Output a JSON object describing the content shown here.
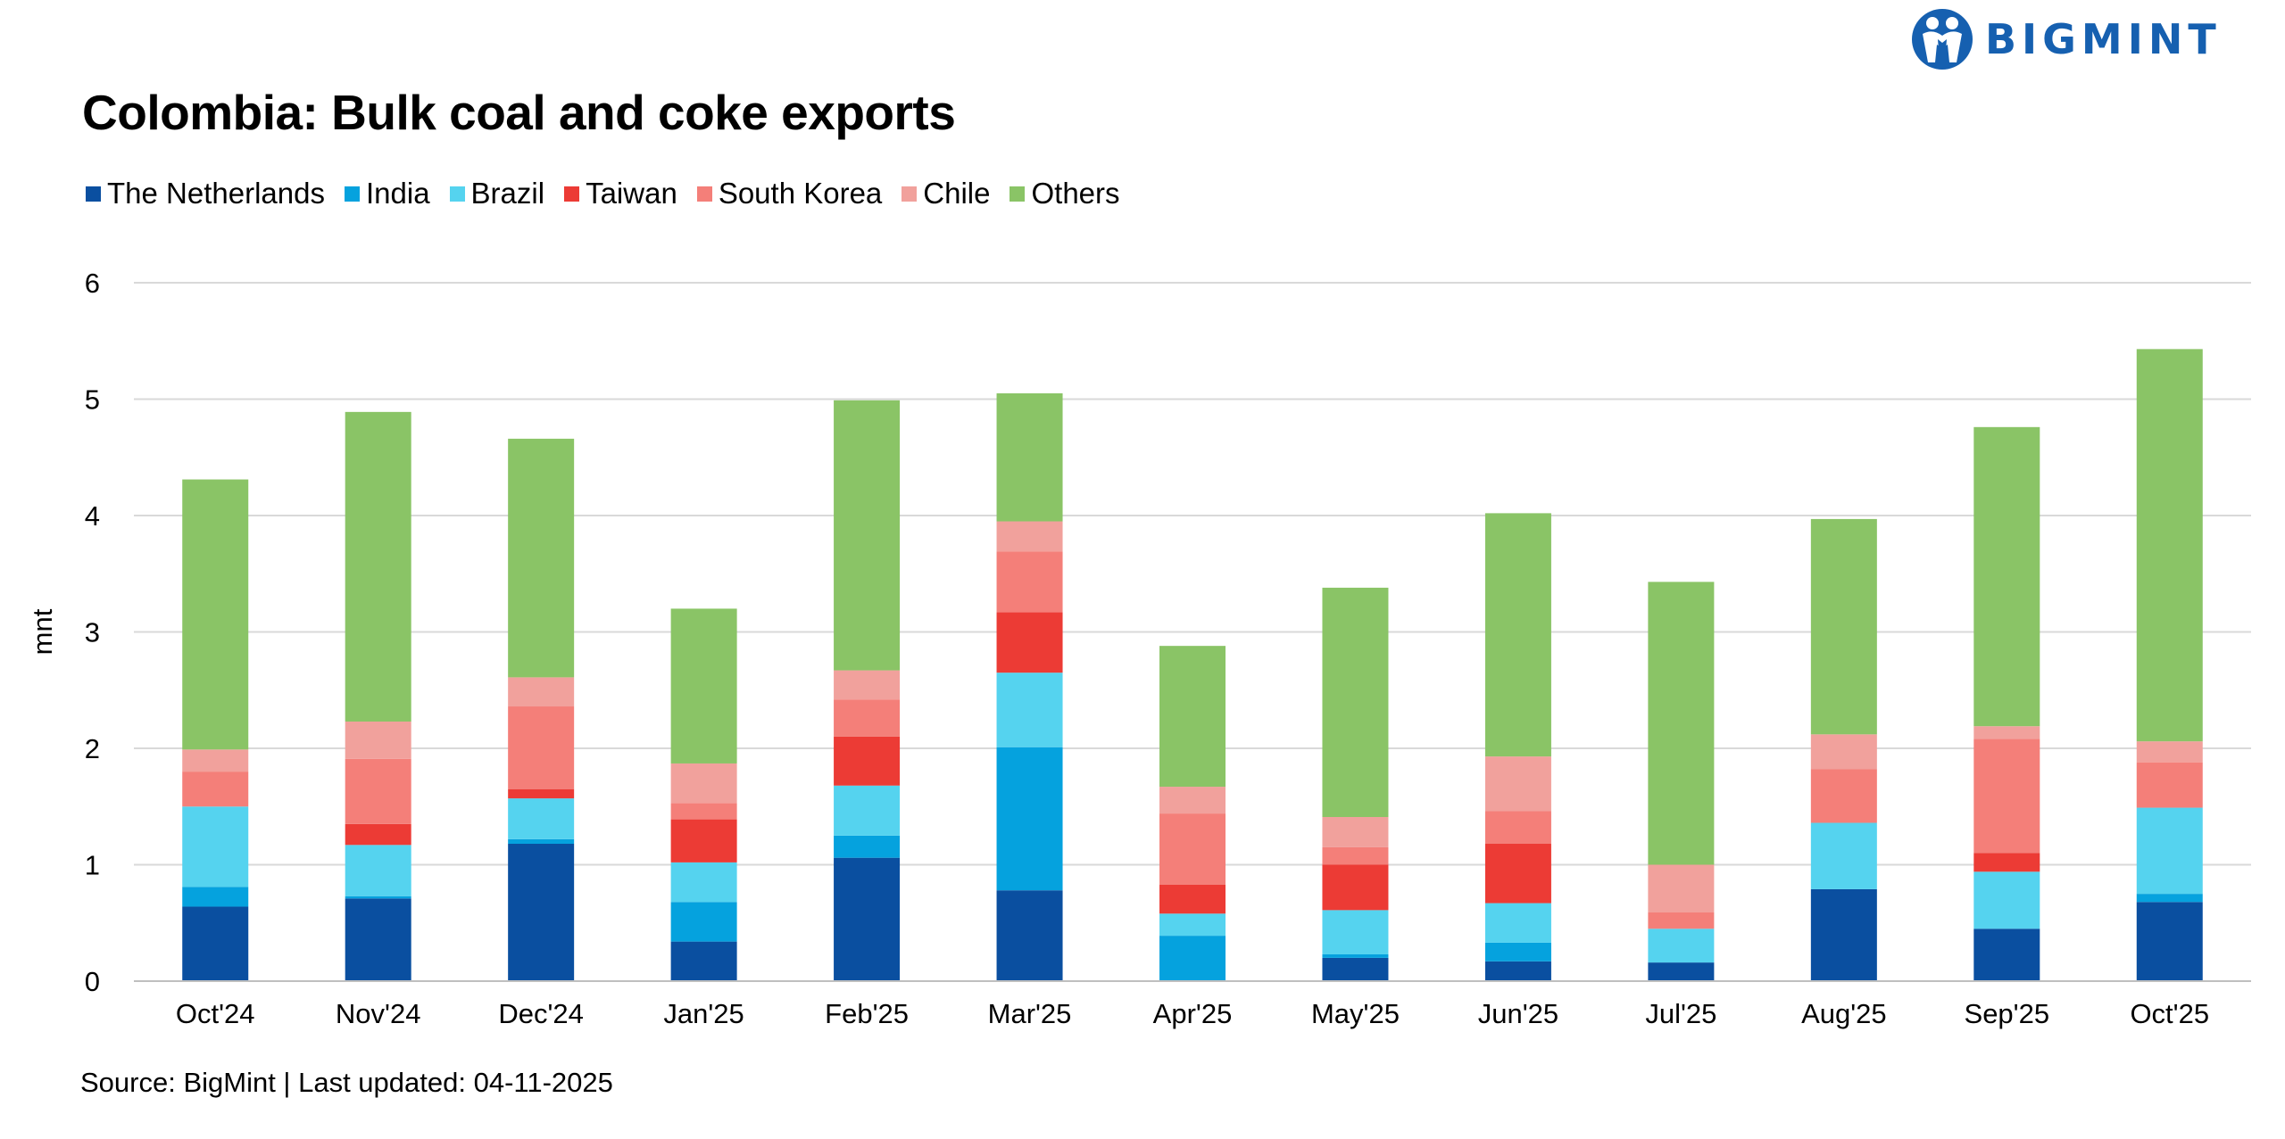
{
  "brand": {
    "name": "BIGMINT",
    "color": "#1660b0"
  },
  "source_text": "Source: BigMint | Last updated: 04-11-2025",
  "chart_data": {
    "type": "bar",
    "stacked": true,
    "title": "Colombia: Bulk coal and coke exports",
    "xlabel": "",
    "ylabel": "mnt",
    "ylim": [
      0,
      6
    ],
    "yticks": [
      0,
      1,
      2,
      3,
      4,
      5,
      6
    ],
    "grid": true,
    "legend_position": "top-left",
    "categories": [
      "Oct'24",
      "Nov'24",
      "Dec'24",
      "Jan'25",
      "Feb'25",
      "Mar'25",
      "Apr'25",
      "May'25",
      "Jun'25",
      "Jul'25",
      "Aug'25",
      "Sep'25",
      "Oct'25"
    ],
    "series": [
      {
        "name": "The Netherlands",
        "color": "#0a4fa0",
        "values": [
          0.64,
          0.71,
          1.18,
          0.34,
          1.06,
          0.78,
          0.0,
          0.2,
          0.17,
          0.16,
          0.79,
          0.45,
          0.68
        ]
      },
      {
        "name": "India",
        "color": "#05a2de",
        "values": [
          0.17,
          0.02,
          0.04,
          0.34,
          0.19,
          1.23,
          0.39,
          0.03,
          0.16,
          0.0,
          0.0,
          0.0,
          0.07
        ]
      },
      {
        "name": "Brazil",
        "color": "#55d3ef",
        "values": [
          0.69,
          0.44,
          0.35,
          0.34,
          0.43,
          0.64,
          0.19,
          0.38,
          0.34,
          0.29,
          0.57,
          0.49,
          0.74
        ]
      },
      {
        "name": "Taiwan",
        "color": "#ec3b35",
        "values": [
          0.0,
          0.18,
          0.08,
          0.37,
          0.42,
          0.52,
          0.25,
          0.39,
          0.51,
          0.0,
          0.0,
          0.16,
          0.0
        ]
      },
      {
        "name": "South Korea",
        "color": "#f47f79",
        "values": [
          0.3,
          0.56,
          0.71,
          0.14,
          0.32,
          0.52,
          0.61,
          0.15,
          0.28,
          0.14,
          0.46,
          0.98,
          0.39
        ]
      },
      {
        "name": "Chile",
        "color": "#f1a19c",
        "values": [
          0.19,
          0.32,
          0.25,
          0.34,
          0.25,
          0.26,
          0.23,
          0.26,
          0.47,
          0.41,
          0.3,
          0.11,
          0.18
        ]
      },
      {
        "name": "Others",
        "color": "#8ac466",
        "values": [
          2.32,
          2.66,
          2.05,
          1.33,
          2.32,
          1.1,
          1.21,
          1.97,
          2.09,
          2.43,
          1.85,
          2.57,
          3.37
        ]
      }
    ]
  }
}
